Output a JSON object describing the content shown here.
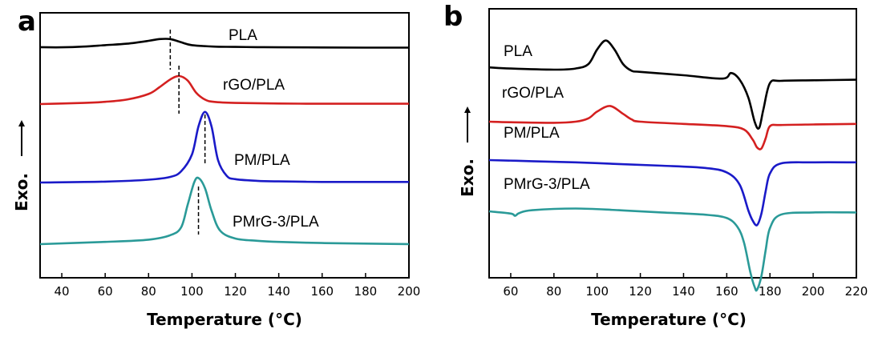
{
  "chart_data": [
    {
      "panel": "a",
      "type": "line",
      "xlabel": "Temperature (°C)",
      "ylabel": "Exo.",
      "xlim": [
        30,
        200
      ],
      "xticks": [
        40,
        60,
        80,
        100,
        120,
        140,
        160,
        180,
        200
      ],
      "series": [
        {
          "name": "PLA",
          "color": "#000000",
          "peak_temperature": 90,
          "x": [
            30,
            40,
            50,
            60,
            70,
            80,
            85,
            90,
            95,
            100,
            110,
            120,
            130,
            140,
            160,
            180,
            200
          ],
          "y": [
            0.06,
            0.05,
            0.1,
            0.2,
            0.3,
            0.5,
            0.62,
            0.62,
            0.4,
            0.2,
            0.1,
            0.08,
            0.06,
            0.05,
            0.04,
            0.03,
            0.03
          ]
        },
        {
          "name": "rGO/PLA",
          "color": "#d42020",
          "peak_temperature": 94,
          "x": [
            30,
            40,
            50,
            60,
            70,
            80,
            85,
            90,
            94,
            98,
            102,
            106,
            110,
            120,
            140,
            160,
            180,
            200
          ],
          "y": [
            0.0,
            0.05,
            0.1,
            0.2,
            0.4,
            0.9,
            1.5,
            2.2,
            2.5,
            2.1,
            1.0,
            0.4,
            0.2,
            0.1,
            0.05,
            0.03,
            0.03,
            0.03
          ]
        },
        {
          "name": "PM/PLA",
          "color": "#1a1ac8",
          "peak_temperature": 106,
          "x": [
            30,
            60,
            80,
            90,
            95,
            100,
            103,
            106,
            109,
            112,
            116,
            120,
            130,
            140,
            160,
            180,
            200
          ],
          "y": [
            0.0,
            0.08,
            0.25,
            0.5,
            1.0,
            2.5,
            5.0,
            6.3,
            5.0,
            2.0,
            0.6,
            0.3,
            0.15,
            0.1,
            0.05,
            0.05,
            0.05
          ]
        },
        {
          "name": "PMrG-3/PLA",
          "color": "#2a9a98",
          "peak_temperature": 103,
          "x": [
            30,
            60,
            80,
            90,
            95,
            98,
            101,
            103,
            106,
            109,
            113,
            120,
            130,
            140,
            160,
            180,
            200
          ],
          "y": [
            0.0,
            0.2,
            0.4,
            0.8,
            1.5,
            3.5,
            5.5,
            5.9,
            5.0,
            3.0,
            1.2,
            0.5,
            0.3,
            0.2,
            0.1,
            0.05,
            0.0
          ]
        }
      ]
    },
    {
      "panel": "b",
      "type": "line",
      "xlabel": "Temperature (°C)",
      "ylabel": "Exo.",
      "xlim": [
        50,
        220
      ],
      "xticks": [
        60,
        80,
        100,
        120,
        140,
        160,
        180,
        200,
        220
      ],
      "series": [
        {
          "name": "PLA",
          "color": "#000000",
          "cold_cryst_peak": 104,
          "melting_peak": 175,
          "x": [
            50,
            60,
            80,
            90,
            96,
            100,
            104,
            108,
            112,
            116,
            120,
            140,
            158,
            162,
            166,
            170,
            173,
            175,
            177,
            180,
            185,
            200,
            220
          ],
          "y": [
            0.2,
            0.1,
            0.0,
            0.1,
            0.5,
            1.8,
            2.6,
            1.8,
            0.5,
            -0.1,
            -0.2,
            -0.5,
            -0.8,
            -0.3,
            -0.9,
            -2.5,
            -4.7,
            -5.2,
            -3.5,
            -1.2,
            -1.0,
            -0.95,
            -0.9
          ]
        },
        {
          "name": "rGO/PLA",
          "color": "#d42020",
          "cold_cryst_peak": 106,
          "melting_peak": 176,
          "x": [
            50,
            60,
            80,
            90,
            96,
            100,
            106,
            112,
            116,
            120,
            140,
            160,
            168,
            172,
            174,
            176,
            178,
            180,
            185,
            200,
            220
          ],
          "y": [
            0.0,
            -0.05,
            -0.1,
            0.0,
            0.3,
            0.9,
            1.4,
            0.7,
            0.2,
            0.0,
            -0.2,
            -0.4,
            -0.7,
            -1.6,
            -2.3,
            -2.4,
            -1.5,
            -0.4,
            -0.3,
            -0.25,
            -0.2
          ]
        },
        {
          "name": "PM/PLA",
          "color": "#1a1ac8",
          "melting_peak": 174,
          "x": [
            50,
            70,
            90,
            110,
            130,
            150,
            160,
            166,
            170,
            172,
            174,
            176,
            178,
            180,
            185,
            200,
            220
          ],
          "y": [
            0.0,
            -0.1,
            -0.2,
            -0.35,
            -0.5,
            -0.7,
            -1.1,
            -2.2,
            -4.5,
            -5.4,
            -5.8,
            -4.8,
            -2.8,
            -1.2,
            -0.3,
            -0.2,
            -0.2
          ]
        },
        {
          "name": "PMrG-3/PLA",
          "color": "#2a9a98",
          "melting_peak": 174,
          "x": [
            50,
            60,
            62,
            64,
            70,
            90,
            110,
            130,
            150,
            160,
            165,
            168,
            171,
            173,
            174,
            176,
            178,
            180,
            185,
            200,
            220
          ],
          "y": [
            0.0,
            -0.2,
            -0.4,
            -0.15,
            0.1,
            0.25,
            0.1,
            -0.1,
            -0.3,
            -0.6,
            -1.4,
            -2.8,
            -5.5,
            -6.8,
            -7.0,
            -5.8,
            -3.5,
            -1.5,
            -0.3,
            -0.1,
            -0.1
          ]
        }
      ]
    }
  ]
}
